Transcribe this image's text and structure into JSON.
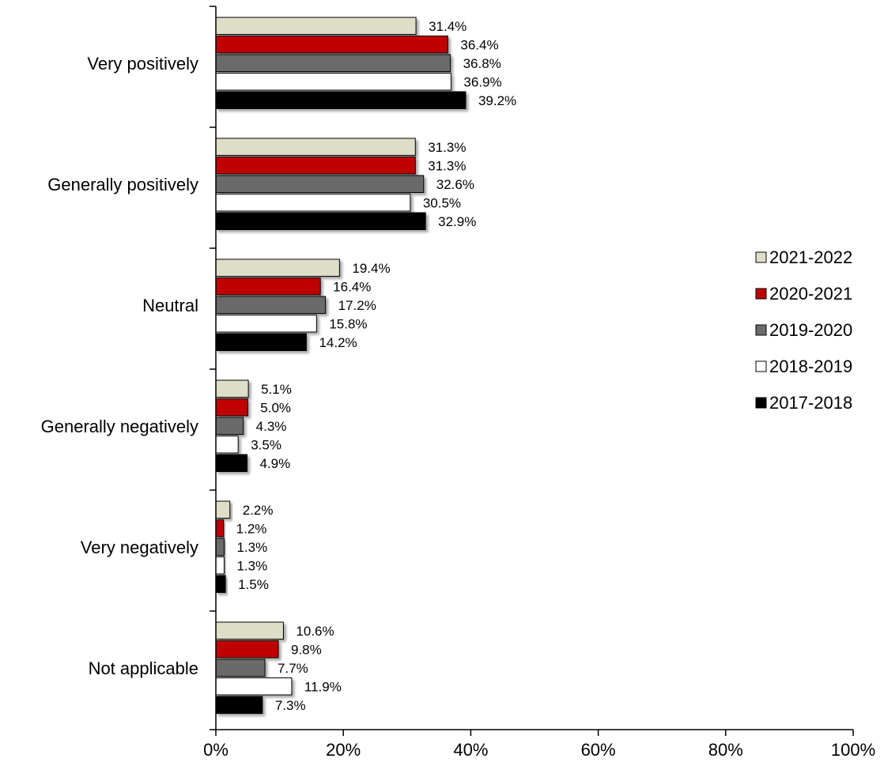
{
  "chart_data": {
    "type": "bar",
    "orientation": "horizontal",
    "categories": [
      "Very positively",
      "Generally positively",
      "Neutral",
      "Generally negatively",
      "Very negatively",
      "Not applicable"
    ],
    "series": [
      {
        "name": "2021-2022",
        "color": "#DEDEC8",
        "values": [
          31.4,
          31.3,
          19.4,
          5.1,
          2.2,
          10.6
        ]
      },
      {
        "name": "2020-2021",
        "color": "#C00000",
        "values": [
          36.4,
          31.3,
          16.4,
          5.0,
          1.2,
          9.8
        ]
      },
      {
        "name": "2019-2020",
        "color": "#6B6B6B",
        "values": [
          36.8,
          32.6,
          17.2,
          4.3,
          1.3,
          7.7
        ]
      },
      {
        "name": "2018-2019",
        "color": "#FFFFFF",
        "values": [
          36.9,
          30.5,
          15.8,
          3.5,
          1.3,
          11.9
        ]
      },
      {
        "name": "2017-2018",
        "color": "#000000",
        "values": [
          39.2,
          32.9,
          14.2,
          4.9,
          1.5,
          7.3
        ]
      }
    ],
    "x_ticks": [
      "0%",
      "20%",
      "40%",
      "60%",
      "80%",
      "100%"
    ],
    "xlim": [
      0,
      100
    ],
    "value_suffix": "%",
    "grid": false,
    "legend_position": "right"
  }
}
